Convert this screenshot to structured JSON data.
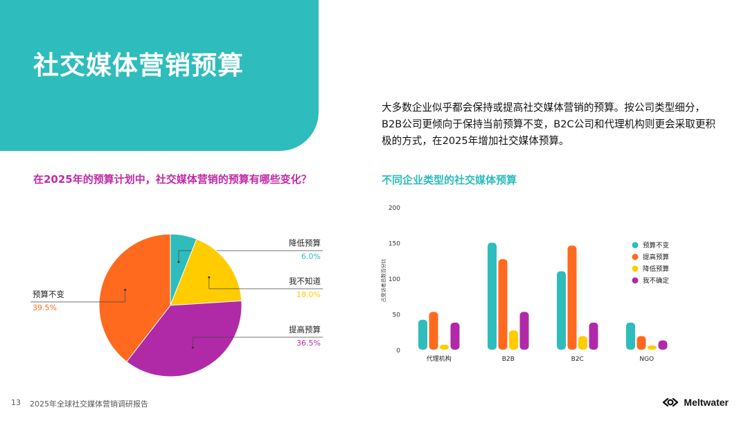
{
  "header": {
    "title": "社交媒体营销预算",
    "accent_color": "#2ebcbc"
  },
  "intro_text": "大多数企业似乎都会保持或提高社交媒体营销的预算。按公司类型细分，B2B公司更倾向于保持当前预算不变，B2C公司和代理机构则更会采取更积极的方式，在2025年增加社交媒体预算。",
  "footer": {
    "page_number": "13",
    "report_title": "2025年全球社交媒体营销调研报告",
    "brand": "Meltwater",
    "brand_icon": "meltwater-logo-icon"
  },
  "chart_data": [
    {
      "type": "pie",
      "title": "在2025年的预算计划中，社交媒体营销的预算有哪些变化？",
      "slices": [
        {
          "label": "降低预算",
          "value": 6.0,
          "value_label": "6.0%",
          "color": "#2ebcbc"
        },
        {
          "label": "我不知道",
          "value": 18.0,
          "value_label": "18.0%",
          "color": "#ffcc00"
        },
        {
          "label": "提高预算",
          "value": 36.5,
          "value_label": "36.5%",
          "color": "#b02aa8"
        },
        {
          "label": "预算不变",
          "value": 39.5,
          "value_label": "39.5%",
          "color": "#ff6a1f"
        }
      ]
    },
    {
      "type": "bar",
      "title": "不同企业类型的社交媒体预算",
      "ylabel": "占受访者总数百分比",
      "ylim": [
        0,
        200
      ],
      "yticks": [
        0,
        50,
        100,
        150,
        200
      ],
      "categories": [
        "代理机构",
        "B2B",
        "B2C",
        "NGO"
      ],
      "legend_position": "right",
      "series": [
        {
          "name": "预算不变",
          "color": "#2ebcbc",
          "values": [
            42,
            150,
            110,
            38
          ]
        },
        {
          "name": "提高预算",
          "color": "#ff6a1f",
          "values": [
            53,
            127,
            146,
            19
          ]
        },
        {
          "name": "降低预算",
          "color": "#ffcc00",
          "values": [
            7,
            27,
            19,
            6
          ]
        },
        {
          "name": "我不确定",
          "color": "#b02aa8",
          "values": [
            38,
            53,
            38,
            13
          ]
        }
      ]
    }
  ]
}
